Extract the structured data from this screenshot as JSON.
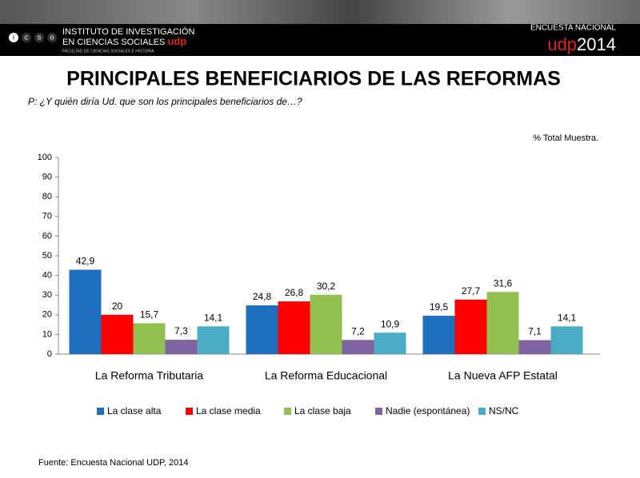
{
  "header": {
    "logo_letters": [
      "i",
      "c",
      "s",
      "o"
    ],
    "institute_line1": "INSTITUTO DE INVESTIGACIÓN",
    "institute_line2": "EN CIENCIAS SOCIALES",
    "institute_brand": "udp",
    "faculty": "FACULTAD DE CIENCIAS SOCIALES E HISTORIA",
    "survey_label": "ENCUESTA NACIONAL",
    "survey_brand": "udp",
    "survey_year": "2014"
  },
  "chart_data": {
    "type": "bar",
    "title": "PRINCIPALES BENEFICIARIOS DE LAS REFORMAS",
    "subtitle": "P: ¿Y quién diría Ud.  que son los principales beneficiarios de…?",
    "note": "% Total Muestra.",
    "source": "Fuente: Encuesta Nacional UDP, 2014",
    "categories": [
      "La Reforma Tributaria",
      "La Reforma Educacional",
      "La Nueva AFP Estatal"
    ],
    "series": [
      {
        "name": "La clase alta",
        "color": "#1f6fbf",
        "values": [
          42.9,
          24.8,
          19.5
        ],
        "value_labels": [
          "42,9",
          "24,8",
          "19,5"
        ]
      },
      {
        "name": "La clase media",
        "color": "#ff0000",
        "values": [
          20,
          26.8,
          27.7
        ],
        "value_labels": [
          "20",
          "26,8",
          "27,7"
        ]
      },
      {
        "name": "La clase baja",
        "color": "#92c050",
        "values": [
          15.7,
          30.2,
          31.6
        ],
        "value_labels": [
          "15,7",
          "30,2",
          "31,6"
        ]
      },
      {
        "name": "Nadie (espontánea)",
        "color": "#8064a2",
        "values": [
          7.3,
          7.2,
          7.1
        ],
        "value_labels": [
          "7,3",
          "7,2",
          "7,1"
        ]
      },
      {
        "name": "NS/NC",
        "color": "#4bacc6",
        "values": [
          14.1,
          10.9,
          14.1
        ],
        "value_labels": [
          "14,1",
          "10,9",
          "14,1"
        ]
      }
    ],
    "ylim": [
      0,
      100
    ],
    "yticks": [
      0,
      10,
      20,
      30,
      40,
      50,
      60,
      70,
      80,
      90,
      100
    ],
    "grid": false
  }
}
